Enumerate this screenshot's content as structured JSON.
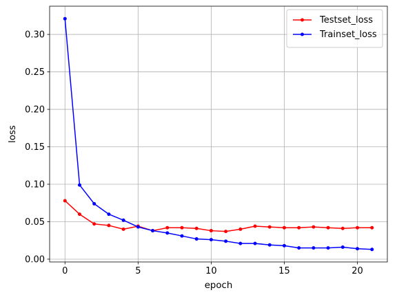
{
  "chart_data": {
    "type": "line",
    "title": "",
    "xlabel": "epoch",
    "ylabel": "loss",
    "xlim": [
      -1.05,
      22.05
    ],
    "ylim": [
      -0.0037,
      0.3377
    ],
    "xticks": [
      0,
      5,
      10,
      15,
      20
    ],
    "yticks": [
      0.0,
      0.05,
      0.1,
      0.15,
      0.2,
      0.25,
      0.3
    ],
    "xtick_labels": [
      "0",
      "5",
      "10",
      "15",
      "20"
    ],
    "ytick_labels": [
      "0.00",
      "0.05",
      "0.10",
      "0.15",
      "0.20",
      "0.25",
      "0.30"
    ],
    "grid": true,
    "legend_position": "top-right",
    "x": [
      0,
      1,
      2,
      3,
      4,
      5,
      6,
      7,
      8,
      9,
      10,
      11,
      12,
      13,
      14,
      15,
      16,
      17,
      18,
      19,
      20,
      21
    ],
    "series": [
      {
        "name": "Testset_loss",
        "color": "#ff0000",
        "marker": "point",
        "values": [
          0.078,
          0.06,
          0.047,
          0.045,
          0.04,
          0.044,
          0.038,
          0.042,
          0.042,
          0.041,
          0.038,
          0.037,
          0.04,
          0.044,
          0.043,
          0.042,
          0.042,
          0.043,
          0.042,
          0.041,
          0.042,
          0.042
        ]
      },
      {
        "name": "Trainset_loss",
        "color": "#0000ff",
        "marker": "point",
        "values": [
          0.321,
          0.099,
          0.074,
          0.06,
          0.052,
          0.043,
          0.038,
          0.035,
          0.031,
          0.027,
          0.026,
          0.024,
          0.021,
          0.021,
          0.019,
          0.018,
          0.015,
          0.015,
          0.015,
          0.016,
          0.014,
          0.013
        ]
      }
    ]
  }
}
